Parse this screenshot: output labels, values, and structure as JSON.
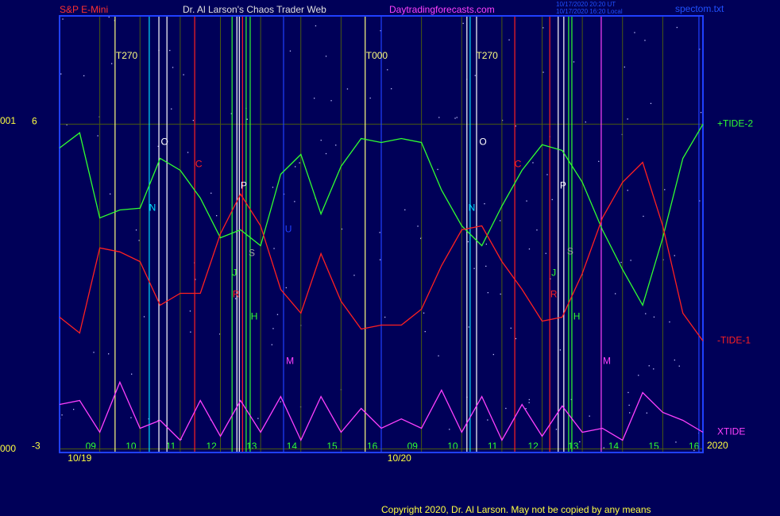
{
  "chart_data": {
    "type": "line",
    "header": {
      "symbol": "S&P E-Mini",
      "title": "Dr. Al Larson's Chaos Trader Web",
      "site": "Daytradingforecasts.com",
      "stamp_ut": "10/17/2020 20:20 UT",
      "stamp_local": "10/17/2020 16:20 Local",
      "file": "spectom.txt"
    },
    "footer": "Copyright 2020, Dr. Al Larson. May not be copied by any means",
    "scale_labels": [
      "001",
      "000"
    ],
    "year_label": "2020",
    "xlim": [
      0,
      16
    ],
    "ylim": [
      -3.1,
      9
    ],
    "yticks": [
      6,
      -3
    ],
    "xticks": [
      {
        "value": 1,
        "label": "09"
      },
      {
        "value": 2,
        "label": "10"
      },
      {
        "value": 3,
        "label": "11"
      },
      {
        "value": 4,
        "label": "12"
      },
      {
        "value": 5,
        "label": "13"
      },
      {
        "value": 6,
        "label": "14"
      },
      {
        "value": 7,
        "label": "15"
      },
      {
        "value": 8,
        "label": "16"
      },
      {
        "value": 9,
        "label": "09"
      },
      {
        "value": 10,
        "label": "10"
      },
      {
        "value": 11,
        "label": "11"
      },
      {
        "value": 12,
        "label": "12"
      },
      {
        "value": 13,
        "label": "13"
      },
      {
        "value": 14,
        "label": "14"
      },
      {
        "value": 15,
        "label": "15"
      },
      {
        "value": 16,
        "label": "16"
      }
    ],
    "grid": true,
    "dates": [
      {
        "text": "10/19",
        "x": 0.5
      },
      {
        "text": "10/20",
        "x": 8.45
      }
    ],
    "x": [
      0,
      0.5,
      1,
      1.5,
      2,
      2.5,
      3,
      3.5,
      4,
      4.5,
      5,
      5.5,
      6,
      6.5,
      7,
      7.5,
      8,
      8.5,
      9,
      9.5,
      10,
      10.5,
      11,
      11.5,
      12,
      12.5,
      13,
      13.5,
      14,
      14.5,
      15,
      15.5,
      16
    ],
    "series": [
      {
        "name": "+TIDE-2",
        "color": "#30ff30",
        "values": [
          5.34,
          5.76,
          3.4,
          3.62,
          3.67,
          5.05,
          4.72,
          3.95,
          2.85,
          3.07,
          2.63,
          4.61,
          5.16,
          3.51,
          4.83,
          5.6,
          5.49,
          5.6,
          5.49,
          4.17,
          3.18,
          2.63,
          3.73,
          4.72,
          5.43,
          5.27,
          4.39,
          3.07,
          1.97,
          0.98,
          2.85,
          5.05,
          6
        ]
      },
      {
        "name": "-TIDE-1",
        "color": "#ff2020",
        "values": [
          0.65,
          0.21,
          2.57,
          2.46,
          2.19,
          0.98,
          1.31,
          1.31,
          2.96,
          4.06,
          3.18,
          1.42,
          0.76,
          2.41,
          1.09,
          0.32,
          0.43,
          0.43,
          0.87,
          2.08,
          3.07,
          3.18,
          2.19,
          1.42,
          0.54,
          0.65,
          1.86,
          3.4,
          4.39,
          4.94,
          3.18,
          0.76,
          -0.01
        ]
      },
      {
        "name": "XTIDE",
        "color": "#ff40ff",
        "values": [
          -1.77,
          -1.66,
          -2.54,
          -1.15,
          -2.43,
          -2.21,
          -2.76,
          -1.66,
          -2.65,
          -1.66,
          -2.54,
          -1.55,
          -2.76,
          -1.55,
          -2.54,
          -1.88,
          -2.43,
          -2.17,
          -2.43,
          -1.37,
          -2.54,
          -1.55,
          -2.76,
          -1.77,
          -2.65,
          -1.81,
          -2.54,
          -2.43,
          -2.76,
          -1.44,
          -1.99,
          -2.21,
          -2.54
        ]
      }
    ],
    "vlines": [
      {
        "x": 1.38,
        "color": "#ffff80"
      },
      {
        "x": 2.23,
        "color": "#00e0ff"
      },
      {
        "x": 2.47,
        "color": "#ffffff"
      },
      {
        "x": 2.67,
        "color": "#ffffff"
      },
      {
        "x": 3.36,
        "color": "#ff2020"
      },
      {
        "x": 4.29,
        "color": "#30ff30"
      },
      {
        "x": 4.41,
        "color": "#ffffff"
      },
      {
        "x": 4.47,
        "color": "#ffffff"
      },
      {
        "x": 4.55,
        "color": "#ff2020"
      },
      {
        "x": 4.64,
        "color": "#30ff30"
      },
      {
        "x": 4.74,
        "color": "#30ff30"
      },
      {
        "x": 5.57,
        "color": "#2040ff"
      },
      {
        "x": 7.6,
        "color": "#ffff80"
      },
      {
        "x": 8.0,
        "color": "#2040ff"
      },
      {
        "x": 10.13,
        "color": "#ffffff"
      },
      {
        "x": 10.21,
        "color": "#00e0ff"
      },
      {
        "x": 10.37,
        "color": "#ffffff"
      },
      {
        "x": 11.32,
        "color": "#ff2020"
      },
      {
        "x": 12.19,
        "color": "#ff2020"
      },
      {
        "x": 12.4,
        "color": "#ffffff"
      },
      {
        "x": 12.54,
        "color": "#ffffff"
      },
      {
        "x": 12.66,
        "color": "#30ff30"
      },
      {
        "x": 12.74,
        "color": "#30ff30"
      },
      {
        "x": 13.47,
        "color": "#ff40ff"
      },
      {
        "x": 15.9,
        "color": "#2040ff"
      }
    ],
    "time_labels": [
      {
        "text": "T270",
        "x": 1.38
      },
      {
        "text": "T000",
        "x": 7.6
      },
      {
        "text": "T270",
        "x": 10.34
      }
    ],
    "markers": [
      {
        "label": "O",
        "x": 2.61,
        "y": 5.49,
        "color": "#ffffff"
      },
      {
        "label": "C",
        "x": 3.46,
        "y": 4.88,
        "color": "#ff2020"
      },
      {
        "label": "N",
        "x": 2.31,
        "y": 3.67,
        "color": "#00e0ff"
      },
      {
        "label": "P",
        "x": 4.58,
        "y": 4.28,
        "color": "#ffffff"
      },
      {
        "label": "S",
        "x": 4.78,
        "y": 2.41,
        "color": "#a0a0a0"
      },
      {
        "label": "U",
        "x": 5.69,
        "y": 3.07,
        "color": "#2040ff"
      },
      {
        "label": "J",
        "x": 4.35,
        "y": 1.86,
        "color": "#30ff30"
      },
      {
        "label": "R",
        "x": 4.39,
        "y": 1.27,
        "color": "#ff2020"
      },
      {
        "label": "H",
        "x": 4.84,
        "y": 0.65,
        "color": "#30ff30"
      },
      {
        "label": "M",
        "x": 5.73,
        "y": -0.58,
        "color": "#ff40ff"
      },
      {
        "label": "O",
        "x": 10.53,
        "y": 5.49,
        "color": "#ffffff"
      },
      {
        "label": "C",
        "x": 11.4,
        "y": 4.88,
        "color": "#ff2020"
      },
      {
        "label": "N",
        "x": 10.25,
        "y": 3.67,
        "color": "#00e0ff"
      },
      {
        "label": "P",
        "x": 12.52,
        "y": 4.28,
        "color": "#ffffff"
      },
      {
        "label": "S",
        "x": 12.7,
        "y": 2.46,
        "color": "#a0a0a0"
      },
      {
        "label": "J",
        "x": 12.29,
        "y": 1.86,
        "color": "#30ff30"
      },
      {
        "label": "R",
        "x": 12.29,
        "y": 1.27,
        "color": "#ff2020"
      },
      {
        "label": "H",
        "x": 12.86,
        "y": 0.65,
        "color": "#30ff30"
      },
      {
        "label": "M",
        "x": 13.61,
        "y": -0.58,
        "color": "#ff40ff"
      }
    ]
  }
}
